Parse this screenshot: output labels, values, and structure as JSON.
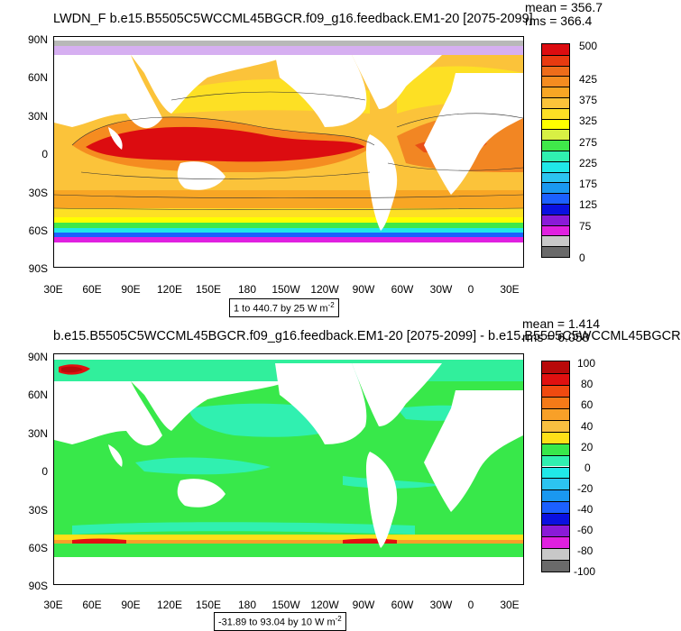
{
  "top_panel": {
    "title": "LWDN_F b.e15.B5505C5WCCML45BGCR.f09_g16.feedback.EM1-20 [2075-2099]",
    "mean": "mean = 356.7",
    "rms": "rms = 366.4",
    "range_label": "1 to 440.7 by 25  W m",
    "range_exp": "-2",
    "y_ticks": [
      "90N",
      "60N",
      "30N",
      "0",
      "30S",
      "60S",
      "90S"
    ],
    "x_ticks": [
      "30E",
      "60E",
      "90E",
      "120E",
      "150E",
      "180",
      "150W",
      "120W",
      "90W",
      "60W",
      "30W",
      "0",
      "30E"
    ],
    "legend_labels": [
      "500",
      "425",
      "375",
      "325",
      "275",
      "225",
      "175",
      "125",
      "75",
      "0"
    ],
    "legend_colors": [
      "#dc0c10",
      "#e83a10",
      "#ee6c1a",
      "#f58c20",
      "#f8a624",
      "#fbc33a",
      "#fde024",
      "#ffff00",
      "#d8f044",
      "#40e84a",
      "#30f0b0",
      "#20e8e8",
      "#2cc4f0",
      "#1a98f0",
      "#1c60ff",
      "#0a10e0",
      "#8a1ad8",
      "#e020e0",
      "#c8c8c8",
      "#6a6a6a"
    ]
  },
  "bottom_panel": {
    "title": "b.e15.B5505C5WCCML45BGCR.f09_g16.feedback.EM1-20 [2075-2099] - b.e15.B5505C5WCCML45BGCR",
    "mean": "mean = 1.414",
    "rms": "rms = 6.058",
    "range_label": "-31.89 to 93.04 by 10  W m",
    "range_exp": "-2",
    "y_ticks": [
      "90N",
      "60N",
      "30N",
      "0",
      "30S",
      "60S",
      "90S"
    ],
    "x_ticks": [
      "30E",
      "60E",
      "90E",
      "120E",
      "150E",
      "180",
      "150W",
      "120W",
      "90W",
      "60W",
      "30W",
      "0",
      "30E"
    ],
    "legend_labels": [
      "100",
      "80",
      "60",
      "40",
      "20",
      "0",
      "-20",
      "-40",
      "-60",
      "-80",
      "-100"
    ],
    "legend_colors": [
      "#b80a0a",
      "#e01010",
      "#f04a10",
      "#f57a18",
      "#f8a028",
      "#f8c040",
      "#fde018",
      "#38e84a",
      "#30f0b0",
      "#20e8e8",
      "#2cc4f0",
      "#1a98f0",
      "#1c60ff",
      "#0a10e0",
      "#8a1ad8",
      "#e020e0",
      "#c8c8c8",
      "#6a6a6a"
    ]
  }
}
